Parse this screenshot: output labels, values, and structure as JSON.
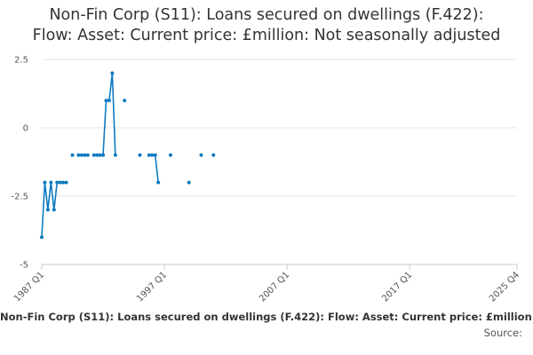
{
  "chart_data": {
    "type": "line",
    "title_line1": "Non-Fin Corp (S11): Loans secured on dwellings (F.422):",
    "title_line2": "Flow: Asset: Current price: £million: Not seasonally adjusted",
    "footer_series_label": "Non-Fin Corp (S11): Loans secured on dwellings (F.422): Flow: Asset: Current price: £million: Not seasonally adjusted",
    "source_label": "Source:",
    "x_ticks": [
      "1987 Q1",
      "1997 Q1",
      "2007 Q1",
      "2017 Q1",
      "2025 Q4"
    ],
    "y_ticks": [
      2.5,
      0,
      -2.5,
      -5
    ],
    "y_tick_labels": [
      "2.5",
      "0",
      "-2.5",
      "-5"
    ],
    "ylim": [
      -5,
      2.5
    ],
    "xlim": [
      "1987 Q1",
      "2025 Q4"
    ],
    "grid": true,
    "line_color": "#0f7bbf",
    "points": [
      {
        "x": "1987 Q1",
        "y": -4
      },
      {
        "x": "1987 Q2",
        "y": -2
      },
      {
        "x": "1987 Q3",
        "y": -3
      },
      {
        "x": "1987 Q4",
        "y": -2
      },
      {
        "x": "1988 Q1",
        "y": -3
      },
      {
        "x": "1988 Q2",
        "y": -2
      },
      {
        "x": "1988 Q3",
        "y": -2
      },
      {
        "x": "1988 Q4",
        "y": -2
      },
      {
        "x": "1989 Q1",
        "y": -2
      },
      {
        "x": "1989 Q2",
        "y": null
      },
      {
        "x": "1989 Q3",
        "y": -1
      },
      {
        "x": "1989 Q4",
        "y": null
      },
      {
        "x": "1990 Q1",
        "y": -1
      },
      {
        "x": "1990 Q2",
        "y": -1
      },
      {
        "x": "1990 Q3",
        "y": -1
      },
      {
        "x": "1990 Q4",
        "y": -1
      },
      {
        "x": "1991 Q1",
        "y": null
      },
      {
        "x": "1991 Q2",
        "y": -1
      },
      {
        "x": "1991 Q3",
        "y": -1
      },
      {
        "x": "1991 Q4",
        "y": -1
      },
      {
        "x": "1992 Q1",
        "y": -1
      },
      {
        "x": "1992 Q2",
        "y": 1
      },
      {
        "x": "1992 Q3",
        "y": 1
      },
      {
        "x": "1992 Q4",
        "y": 2
      },
      {
        "x": "1993 Q1",
        "y": -1
      },
      {
        "x": "1993 Q2",
        "y": null
      },
      {
        "x": "1993 Q3",
        "y": null
      },
      {
        "x": "1993 Q4",
        "y": 1
      },
      {
        "x": "1994 Q1",
        "y": null
      },
      {
        "x": "1994 Q2",
        "y": null
      },
      {
        "x": "1994 Q3",
        "y": null
      },
      {
        "x": "1994 Q4",
        "y": null
      },
      {
        "x": "1995 Q1",
        "y": -1
      },
      {
        "x": "1995 Q2",
        "y": null
      },
      {
        "x": "1995 Q3",
        "y": null
      },
      {
        "x": "1995 Q4",
        "y": -1
      },
      {
        "x": "1996 Q1",
        "y": -1
      },
      {
        "x": "1996 Q2",
        "y": -1
      },
      {
        "x": "1996 Q3",
        "y": -2
      },
      {
        "x": "1996 Q4",
        "y": null
      },
      {
        "x": "1997 Q1",
        "y": null
      },
      {
        "x": "1997 Q2",
        "y": null
      },
      {
        "x": "1997 Q3",
        "y": -1
      },
      {
        "x": "1997 Q4",
        "y": null
      },
      {
        "x": "1998 Q1",
        "y": null
      },
      {
        "x": "1998 Q2",
        "y": null
      },
      {
        "x": "1998 Q3",
        "y": null
      },
      {
        "x": "1998 Q4",
        "y": null
      },
      {
        "x": "1999 Q1",
        "y": -2
      },
      {
        "x": "1999 Q2",
        "y": null
      },
      {
        "x": "1999 Q3",
        "y": null
      },
      {
        "x": "1999 Q4",
        "y": null
      },
      {
        "x": "2000 Q1",
        "y": -1
      },
      {
        "x": "2000 Q2",
        "y": null
      },
      {
        "x": "2000 Q3",
        "y": null
      },
      {
        "x": "2000 Q4",
        "y": null
      },
      {
        "x": "2001 Q1",
        "y": -1
      }
    ]
  }
}
